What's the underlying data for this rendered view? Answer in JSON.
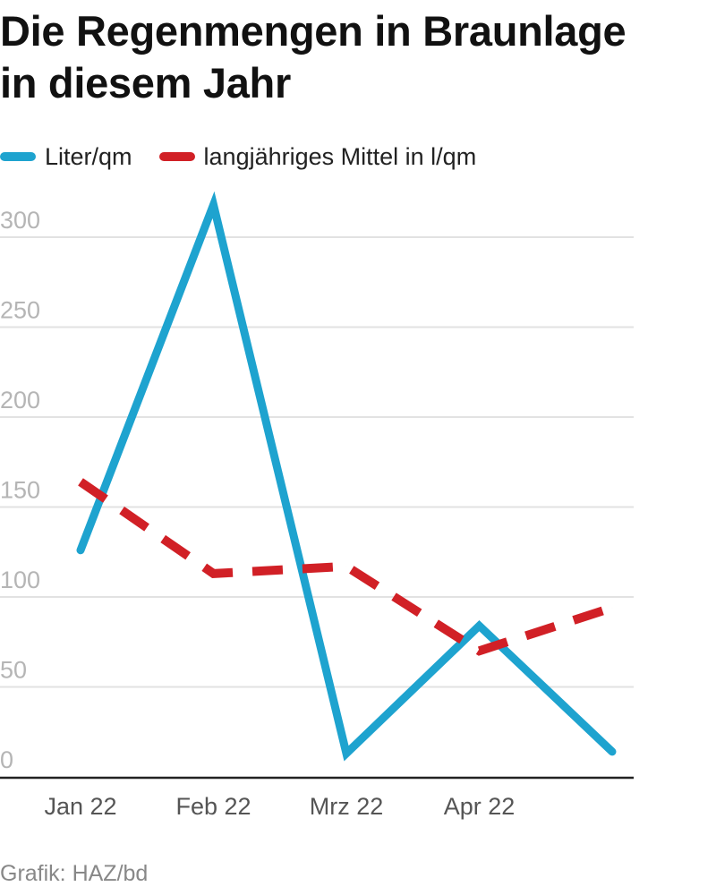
{
  "title_lines": [
    "Die Regenmengen in Braunlage",
    "in diesem Jahr"
  ],
  "source": "Grafik: HAZ/bd",
  "colors": {
    "actual": "#1ea3cf",
    "average": "#d12026",
    "grid": "#e2e2e2",
    "axis": "#222222"
  },
  "chart_data": {
    "type": "line",
    "title": "Die Regenmengen in Braunlage in diesem Jahr",
    "x": [
      "Jan 22",
      "Feb 22",
      "Mrz 22",
      "Apr 22",
      ""
    ],
    "xlabel": "",
    "ylabel": "",
    "ylim": [
      0,
      300
    ],
    "yticks": [
      0,
      50,
      100,
      150,
      200,
      250,
      300
    ],
    "grid": true,
    "legend_position": "top-left",
    "series": [
      {
        "name": "Liter/qm",
        "values": [
          126,
          318,
          13,
          84,
          14
        ],
        "style": "solid"
      },
      {
        "name": "langjähriges Mittel in l/qm",
        "values": [
          164,
          113,
          117,
          70,
          94
        ],
        "style": "dashed"
      }
    ]
  }
}
